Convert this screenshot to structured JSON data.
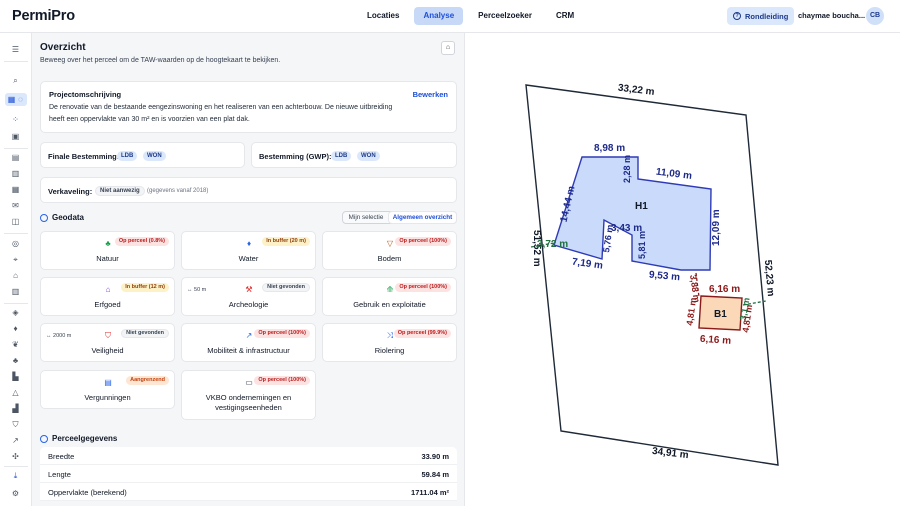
{
  "app": {
    "logo": "PermiPro"
  },
  "nav": {
    "tabs": [
      "Locaties",
      "Analyse",
      "Perceelzoeker",
      "CRM"
    ]
  },
  "header": {
    "tour_label": "Rondleiding",
    "user_name": "chaymae boucha...",
    "avatar_initials": "CB"
  },
  "overview": {
    "title": "Overzicht",
    "subtitle": "Beweeg over het perceel om de TAW-waarden op de hoogtekaart te bekijken."
  },
  "project": {
    "title": "Projectomschrijving",
    "edit_label": "Bewerken",
    "description_line1": "De renovatie van de bestaande eengezinswoning en het realiseren van een achterbouw. De nieuwe uitbreiding",
    "description_line2": "heeft een oppervlakte van 30 m² en is voorzien van een plat dak."
  },
  "zoning": {
    "final_label": "Finale Bestemming:",
    "final_tags": [
      "LDB",
      "WON"
    ],
    "gwp_label": "Bestemming (GWP):",
    "gwp_tags": [
      "LDB",
      "WON"
    ]
  },
  "parcelling": {
    "label": "Verkaveling:",
    "status": "Niet aanwezig",
    "note": "(gegevens vanaf 2018)"
  },
  "geodata": {
    "title": "Geodata",
    "toggle": [
      "Mijn selectie",
      "Algemeen overzicht"
    ],
    "tiles": [
      {
        "label": "Natuur",
        "tag": "Op perceel (0.8%)",
        "icon": "tree-icon"
      },
      {
        "label": "Water",
        "tag": "In buffer (20 m)",
        "icon": "water-drop-icon"
      },
      {
        "label": "Bodem",
        "tag": "Op perceel (100%)",
        "icon": "soil-icon"
      },
      {
        "label": "Erfgoed",
        "tag": "In buffer (12 m)",
        "icon": "heritage-icon"
      },
      {
        "label": "Archeologie",
        "tag": "Niet gevonden",
        "distance": "50 m",
        "icon": "shovel-icon"
      },
      {
        "label": "Gebruik en exploitatie",
        "tag": "Op perceel (100%)",
        "icon": "usage-icon"
      },
      {
        "label": "Veiligheid",
        "tag": "Niet gevonden",
        "distance": "2000 m",
        "icon": "shield-icon"
      },
      {
        "label": "Mobiliteit & infrastructuur",
        "tag": "Op perceel (100%)",
        "icon": "trend-icon"
      },
      {
        "label": "Riolering",
        "tag": "Op perceel (99.9%)",
        "icon": "sewer-icon"
      },
      {
        "label": "Vergunningen",
        "tag": "Aangrenzend",
        "icon": "document-icon"
      },
      {
        "label": "VKBO ondernemingen en vestigingseenheden",
        "label_line1": "VKBO ondernemingen en",
        "label_line2": "vestigingseenheden",
        "tag": "Op perceel (100%)",
        "icon": "briefcase-icon"
      }
    ]
  },
  "parcel": {
    "title": "Perceelgegevens",
    "rows": [
      {
        "key": "Breedte",
        "value": "33.90 m"
      },
      {
        "key": "Lengte",
        "value": "59.84 m"
      },
      {
        "key": "Oppervlakte (berekend)",
        "value": "1711.04 m²"
      }
    ]
  },
  "map": {
    "parcel_top": "33,22 m",
    "parcel_bottom": "34,91 m",
    "parcel_left": "51,52 m",
    "parcel_right": "52,23 m",
    "house_name": "H1",
    "house_dims": [
      "8,98 m",
      "2,28 m",
      "11,09 m",
      "14,44 m",
      "12,09 m",
      "5,76 m",
      "3,43 m",
      "5,81 m",
      "7,19 m",
      "9,53 m"
    ],
    "setback_left": "3,72 m",
    "setback_between": "3,88 m",
    "annex_name": "B1",
    "annex_dims": [
      "6,16 m",
      "4,81 m",
      "4,81 m",
      "6,16 m"
    ],
    "setback_right": "3,1 m",
    "colors": {
      "house_fill": "#c9dafb",
      "house_stroke": "#2f3bb6",
      "annex_fill": "#fbd9b8",
      "annex_stroke": "#8b1a1a",
      "setback": "#1f6f3f"
    }
  }
}
